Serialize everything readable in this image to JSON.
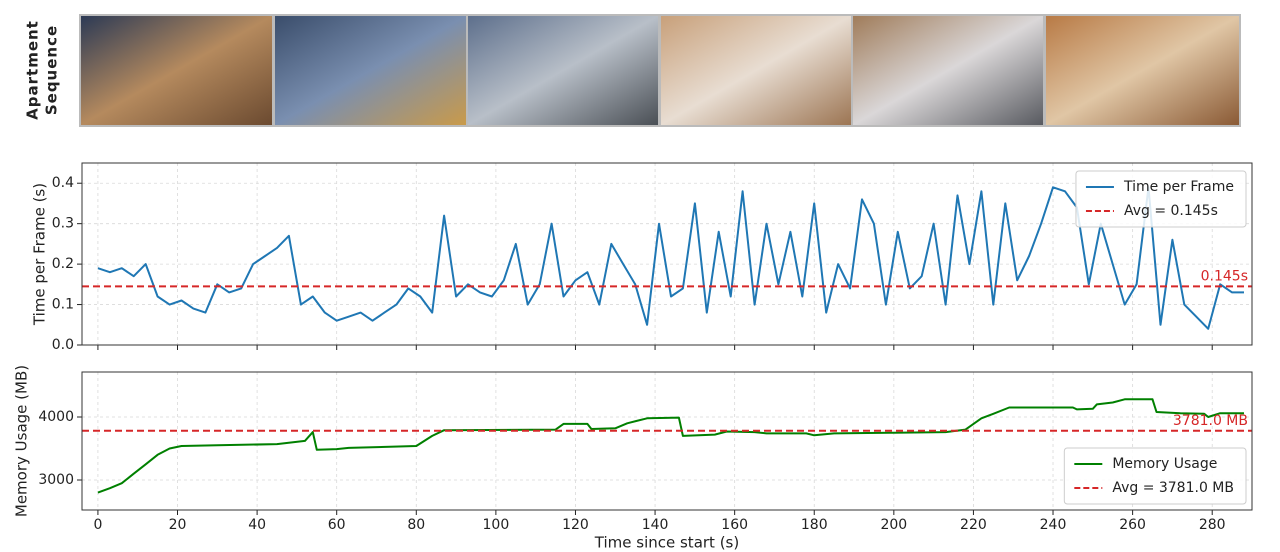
{
  "image_strip": {
    "label_lines": [
      "Apartment",
      "Sequence"
    ]
  },
  "chart_data": [
    {
      "type": "line",
      "ylabel": "Time per Frame (s)",
      "x": [
        0,
        3,
        6,
        9,
        12,
        15,
        18,
        21,
        24,
        27,
        30,
        33,
        36,
        39,
        42,
        45,
        48,
        51,
        54,
        57,
        60,
        63,
        66,
        69,
        72,
        75,
        78,
        81,
        84,
        87,
        90,
        93,
        96,
        99,
        102,
        105,
        108,
        111,
        114,
        117,
        120,
        123,
        126,
        129,
        132,
        135,
        138,
        141,
        144,
        147,
        150,
        153,
        156,
        159,
        162,
        165,
        168,
        171,
        174,
        177,
        180,
        183,
        186,
        189,
        192,
        195,
        198,
        201,
        204,
        207,
        210,
        213,
        216,
        219,
        222,
        225,
        228,
        231,
        234,
        237,
        240,
        243,
        246,
        249,
        252,
        255,
        258,
        261,
        264,
        267,
        270,
        273,
        276,
        279,
        282,
        285,
        288
      ],
      "series": [
        {
          "name": "Time per Frame",
          "color": "#1f77b4",
          "values": [
            0.19,
            0.18,
            0.19,
            0.17,
            0.2,
            0.12,
            0.1,
            0.11,
            0.09,
            0.08,
            0.15,
            0.13,
            0.14,
            0.2,
            0.22,
            0.24,
            0.27,
            0.1,
            0.12,
            0.08,
            0.06,
            0.07,
            0.08,
            0.06,
            0.08,
            0.1,
            0.14,
            0.12,
            0.08,
            0.32,
            0.12,
            0.15,
            0.13,
            0.12,
            0.16,
            0.25,
            0.1,
            0.15,
            0.3,
            0.12,
            0.16,
            0.18,
            0.1,
            0.25,
            0.2,
            0.15,
            0.05,
            0.3,
            0.12,
            0.14,
            0.35,
            0.08,
            0.28,
            0.12,
            0.38,
            0.1,
            0.3,
            0.15,
            0.28,
            0.12,
            0.35,
            0.08,
            0.2,
            0.14,
            0.36,
            0.3,
            0.1,
            0.28,
            0.14,
            0.17,
            0.3,
            0.1,
            0.37,
            0.2,
            0.38,
            0.1,
            0.35,
            0.16,
            0.22,
            0.3,
            0.39,
            0.38,
            0.34,
            0.15,
            0.3,
            0.2,
            0.1,
            0.15,
            0.39,
            0.05,
            0.26,
            0.1,
            0.07,
            0.04,
            0.15,
            0.13,
            0.13
          ]
        }
      ],
      "reference_line": {
        "value": 0.145,
        "label": "0.145s",
        "name": "Avg = 0.145s",
        "color": "#d62728"
      },
      "xlim": [
        -4,
        290
      ],
      "ylim": [
        0,
        0.45
      ],
      "xticks": [
        0,
        20,
        40,
        60,
        80,
        100,
        120,
        140,
        160,
        180,
        200,
        220,
        240,
        260,
        280
      ],
      "yticks": [
        {
          "value": 0,
          "label": "0.0"
        },
        0.1,
        0.2,
        0.3,
        0.4
      ],
      "show_xtick_labels": false,
      "grid": true,
      "legend": "upper-right"
    },
    {
      "type": "line",
      "ylabel": "Memory Usage (MB)",
      "xlabel": "Time since start (s)",
      "x": [
        0,
        3,
        6,
        9,
        12,
        15,
        18,
        21,
        30,
        45,
        52,
        54,
        55,
        60,
        63,
        80,
        84,
        87,
        115,
        117,
        123,
        124,
        130,
        133,
        138,
        146,
        147,
        155,
        158,
        165,
        168,
        178,
        180,
        185,
        200,
        213,
        218,
        222,
        225,
        229,
        245,
        246,
        250,
        251,
        255,
        258,
        265,
        266,
        272,
        278,
        279,
        282,
        288
      ],
      "series": [
        {
          "name": "Memory Usage",
          "color": "#008000",
          "values": [
            2800,
            2870,
            2950,
            3100,
            3250,
            3400,
            3500,
            3540,
            3550,
            3570,
            3620,
            3760,
            3480,
            3490,
            3510,
            3540,
            3700,
            3790,
            3800,
            3890,
            3890,
            3810,
            3820,
            3900,
            3980,
            3990,
            3700,
            3720,
            3770,
            3760,
            3740,
            3740,
            3710,
            3740,
            3750,
            3760,
            3800,
            3980,
            4050,
            4150,
            4150,
            4120,
            4130,
            4200,
            4230,
            4280,
            4280,
            4080,
            4060,
            4050,
            4000,
            4060,
            4060
          ]
        }
      ],
      "reference_line": {
        "value": 3781.0,
        "label": "3781.0 MB",
        "name": "Avg = 3781.0 MB",
        "color": "#d62728"
      },
      "xlim": [
        -4,
        290
      ],
      "ylim": [
        2524,
        4714
      ],
      "xticks": [
        0,
        20,
        40,
        60,
        80,
        100,
        120,
        140,
        160,
        180,
        200,
        220,
        240,
        260,
        280
      ],
      "yticks": [
        3000,
        4000
      ],
      "show_xtick_labels": true,
      "grid": true,
      "legend": "lower-right"
    }
  ]
}
